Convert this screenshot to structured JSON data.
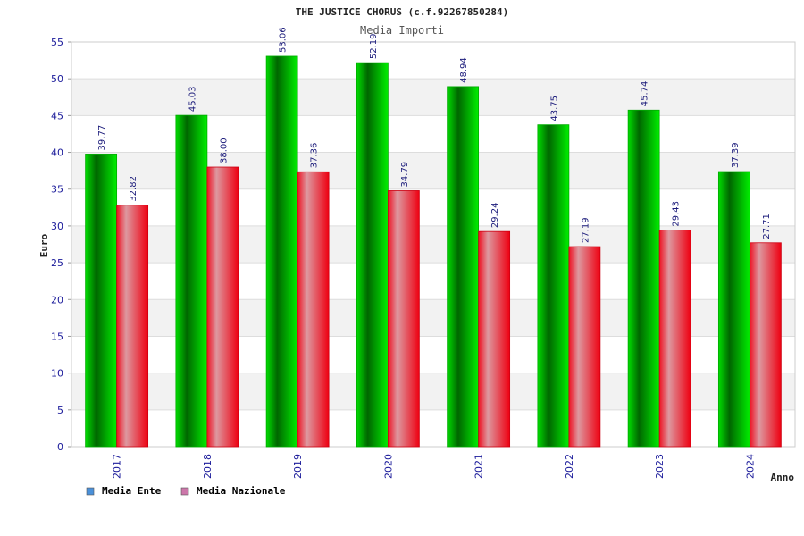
{
  "chart_data": {
    "type": "bar",
    "title": "THE JUSTICE CHORUS (c.f.92267850284)",
    "subtitle": "Media Importi",
    "ylabel": "Euro",
    "xlabel": "Anno",
    "ylim": [
      0,
      55
    ],
    "yticks": [
      "0",
      "5",
      "10",
      "15",
      "20",
      "25",
      "30",
      "35",
      "40",
      "45",
      "50",
      "55"
    ],
    "grid": true,
    "legend_position": "bottom-left",
    "categories": [
      "2017",
      "2018",
      "2019",
      "2020",
      "2021",
      "2022",
      "2023",
      "2024"
    ],
    "series": [
      {
        "name": "Media Ente",
        "color": "#00cc00",
        "legend_color": "#4a90d9",
        "values": [
          39.77,
          45.03,
          53.06,
          52.19,
          48.94,
          43.75,
          45.74,
          37.39
        ],
        "labels": [
          "39.77",
          "45.03",
          "53.06",
          "52.19",
          "48.94",
          "43.75",
          "45.74",
          "37.39"
        ]
      },
      {
        "name": "Media Nazionale",
        "color": "#ee1122",
        "legend_color": "#cc77aa",
        "values": [
          32.82,
          38.0,
          37.36,
          34.79,
          29.24,
          27.19,
          29.43,
          27.71
        ],
        "labels": [
          "32.82",
          "38.00",
          "37.36",
          "34.79",
          "29.24",
          "27.19",
          "29.43",
          "27.71"
        ]
      }
    ]
  }
}
